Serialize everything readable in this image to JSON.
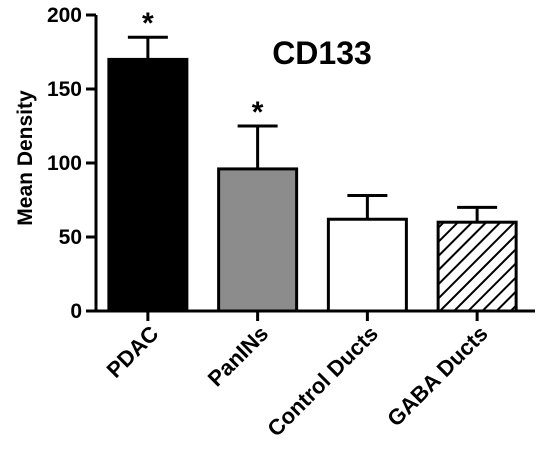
{
  "chart_data": {
    "type": "bar",
    "title": "CD133",
    "xlabel": "",
    "ylabel": "Mean Density",
    "ylim": [
      0,
      200
    ],
    "yticks": [
      0,
      50,
      100,
      150,
      200
    ],
    "categories": [
      "PDAC",
      "PanINs",
      "Control Ducts",
      "GABA Ducts"
    ],
    "values": [
      170,
      96,
      62,
      60
    ],
    "errors": [
      15,
      29,
      16,
      10
    ],
    "annotations": [
      "*",
      "*",
      "",
      ""
    ],
    "fills": [
      "solid-black",
      "solid-gray",
      "white",
      "hatched"
    ],
    "colors": {
      "PDAC": "#000000",
      "PanINs": "#8c8c8c",
      "Control Ducts": "#ffffff",
      "GABA Ducts": "#ffffff"
    },
    "grid": false,
    "legend": "none"
  }
}
